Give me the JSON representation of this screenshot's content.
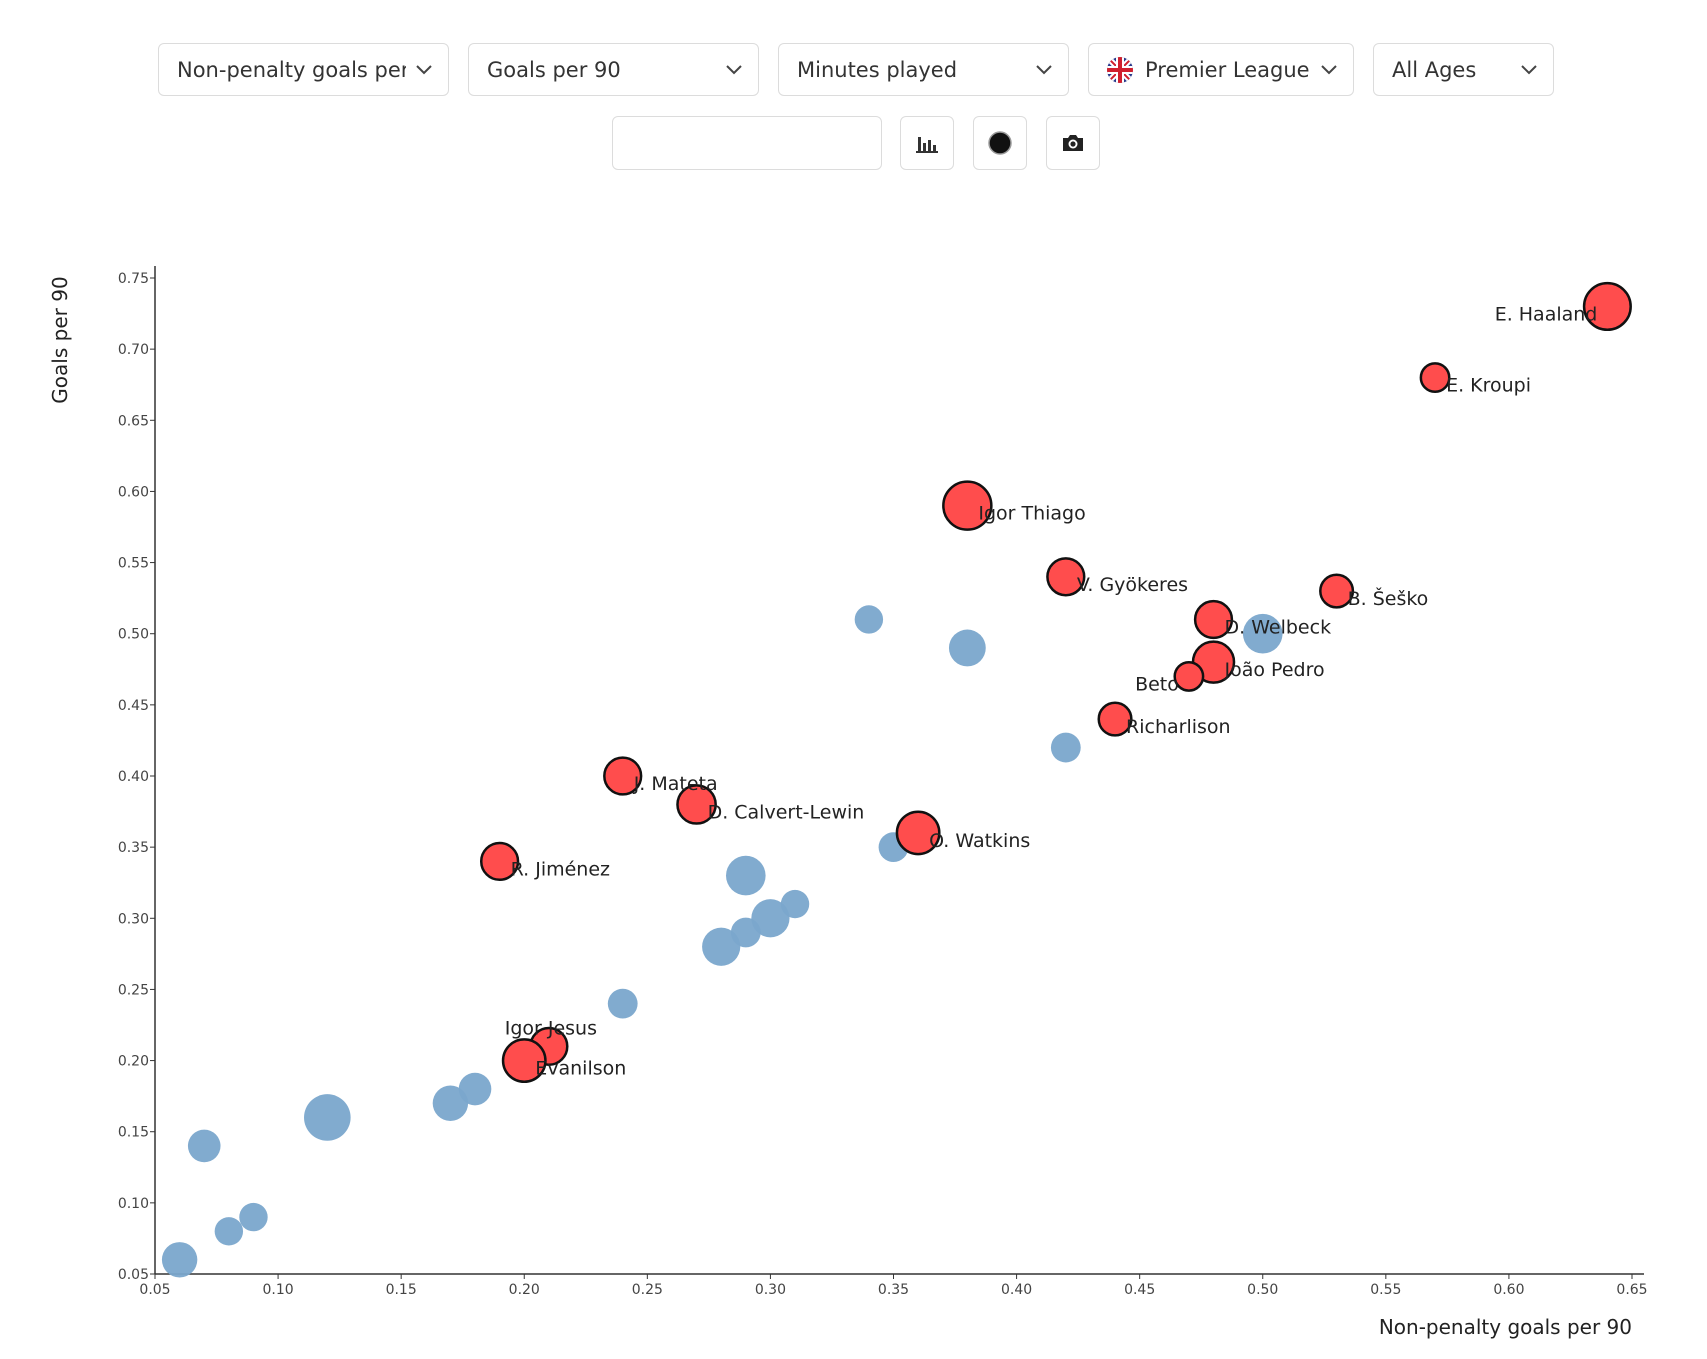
{
  "controls": {
    "x_metric": "Non-penalty goals per 90",
    "y_metric": "Goals per 90",
    "size_metric": "Minutes played",
    "league": "Premier League",
    "age": "All Ages",
    "search_value": ""
  },
  "icons": {
    "bar_chart": "bar-chart-icon",
    "bubble_toggle": "circle-icon",
    "screenshot": "camera-icon",
    "league_flag": "uk-flag-icon"
  },
  "colors": {
    "highlight": "#ff4d4d",
    "other": "#7aa6cc",
    "outline": "#111111"
  },
  "chart_data": {
    "type": "scatter",
    "xlabel": "Non-penalty goals per 90",
    "ylabel": "Goals per 90",
    "xlim": [
      0.05,
      0.65
    ],
    "ylim": [
      0.05,
      0.75
    ],
    "xticks": [
      "0.05",
      "0.10",
      "0.15",
      "0.20",
      "0.25",
      "0.30",
      "0.35",
      "0.40",
      "0.45",
      "0.50",
      "0.55",
      "0.60",
      "0.65"
    ],
    "yticks": [
      "0.05",
      "0.10",
      "0.15",
      "0.20",
      "0.25",
      "0.30",
      "0.35",
      "0.40",
      "0.45",
      "0.50",
      "0.55",
      "0.60",
      "0.65",
      "0.70",
      "0.75"
    ],
    "grid": false,
    "highlighted": [
      {
        "name": "E. Haaland",
        "x": 0.64,
        "y": 0.73,
        "size": 0.95
      },
      {
        "name": "E. Kroupi",
        "x": 0.57,
        "y": 0.68,
        "size": 0.3
      },
      {
        "name": "Igor Thiago",
        "x": 0.38,
        "y": 0.59,
        "size": 1.0
      },
      {
        "name": "V. Gyökeres",
        "x": 0.42,
        "y": 0.54,
        "size": 0.6
      },
      {
        "name": "B. Šeško",
        "x": 0.53,
        "y": 0.53,
        "size": 0.45
      },
      {
        "name": "D. Welbeck",
        "x": 0.48,
        "y": 0.51,
        "size": 0.6
      },
      {
        "name": "João Pedro",
        "x": 0.48,
        "y": 0.48,
        "size": 0.75
      },
      {
        "name": "Beto",
        "x": 0.47,
        "y": 0.47,
        "size": 0.3
      },
      {
        "name": "Richarlison",
        "x": 0.44,
        "y": 0.44,
        "size": 0.45
      },
      {
        "name": "J. Mateta",
        "x": 0.24,
        "y": 0.4,
        "size": 0.6
      },
      {
        "name": "D. Calvert-Lewin",
        "x": 0.27,
        "y": 0.38,
        "size": 0.65
      },
      {
        "name": "O. Watkins",
        "x": 0.36,
        "y": 0.36,
        "size": 0.8
      },
      {
        "name": "R. Jiménez",
        "x": 0.19,
        "y": 0.34,
        "size": 0.6
      },
      {
        "name": "Igor Jesus",
        "x": 0.21,
        "y": 0.21,
        "size": 0.6
      },
      {
        "name": "Evanilson",
        "x": 0.2,
        "y": 0.2,
        "size": 0.8
      }
    ],
    "others": [
      {
        "x": 0.5,
        "y": 0.5,
        "size": 0.7
      },
      {
        "x": 0.34,
        "y": 0.51,
        "size": 0.3
      },
      {
        "x": 0.38,
        "y": 0.49,
        "size": 0.6
      },
      {
        "x": 0.42,
        "y": 0.42,
        "size": 0.35
      },
      {
        "x": 0.35,
        "y": 0.35,
        "size": 0.35
      },
      {
        "x": 0.29,
        "y": 0.33,
        "size": 0.7
      },
      {
        "x": 0.31,
        "y": 0.31,
        "size": 0.3
      },
      {
        "x": 0.3,
        "y": 0.3,
        "size": 0.65
      },
      {
        "x": 0.29,
        "y": 0.29,
        "size": 0.35
      },
      {
        "x": 0.28,
        "y": 0.28,
        "size": 0.65
      },
      {
        "x": 0.24,
        "y": 0.24,
        "size": 0.35
      },
      {
        "x": 0.18,
        "y": 0.18,
        "size": 0.45
      },
      {
        "x": 0.17,
        "y": 0.17,
        "size": 0.55
      },
      {
        "x": 0.12,
        "y": 0.16,
        "size": 0.95
      },
      {
        "x": 0.07,
        "y": 0.14,
        "size": 0.45
      },
      {
        "x": 0.09,
        "y": 0.09,
        "size": 0.3
      },
      {
        "x": 0.08,
        "y": 0.08,
        "size": 0.3
      },
      {
        "x": 0.06,
        "y": 0.06,
        "size": 0.55
      }
    ]
  }
}
